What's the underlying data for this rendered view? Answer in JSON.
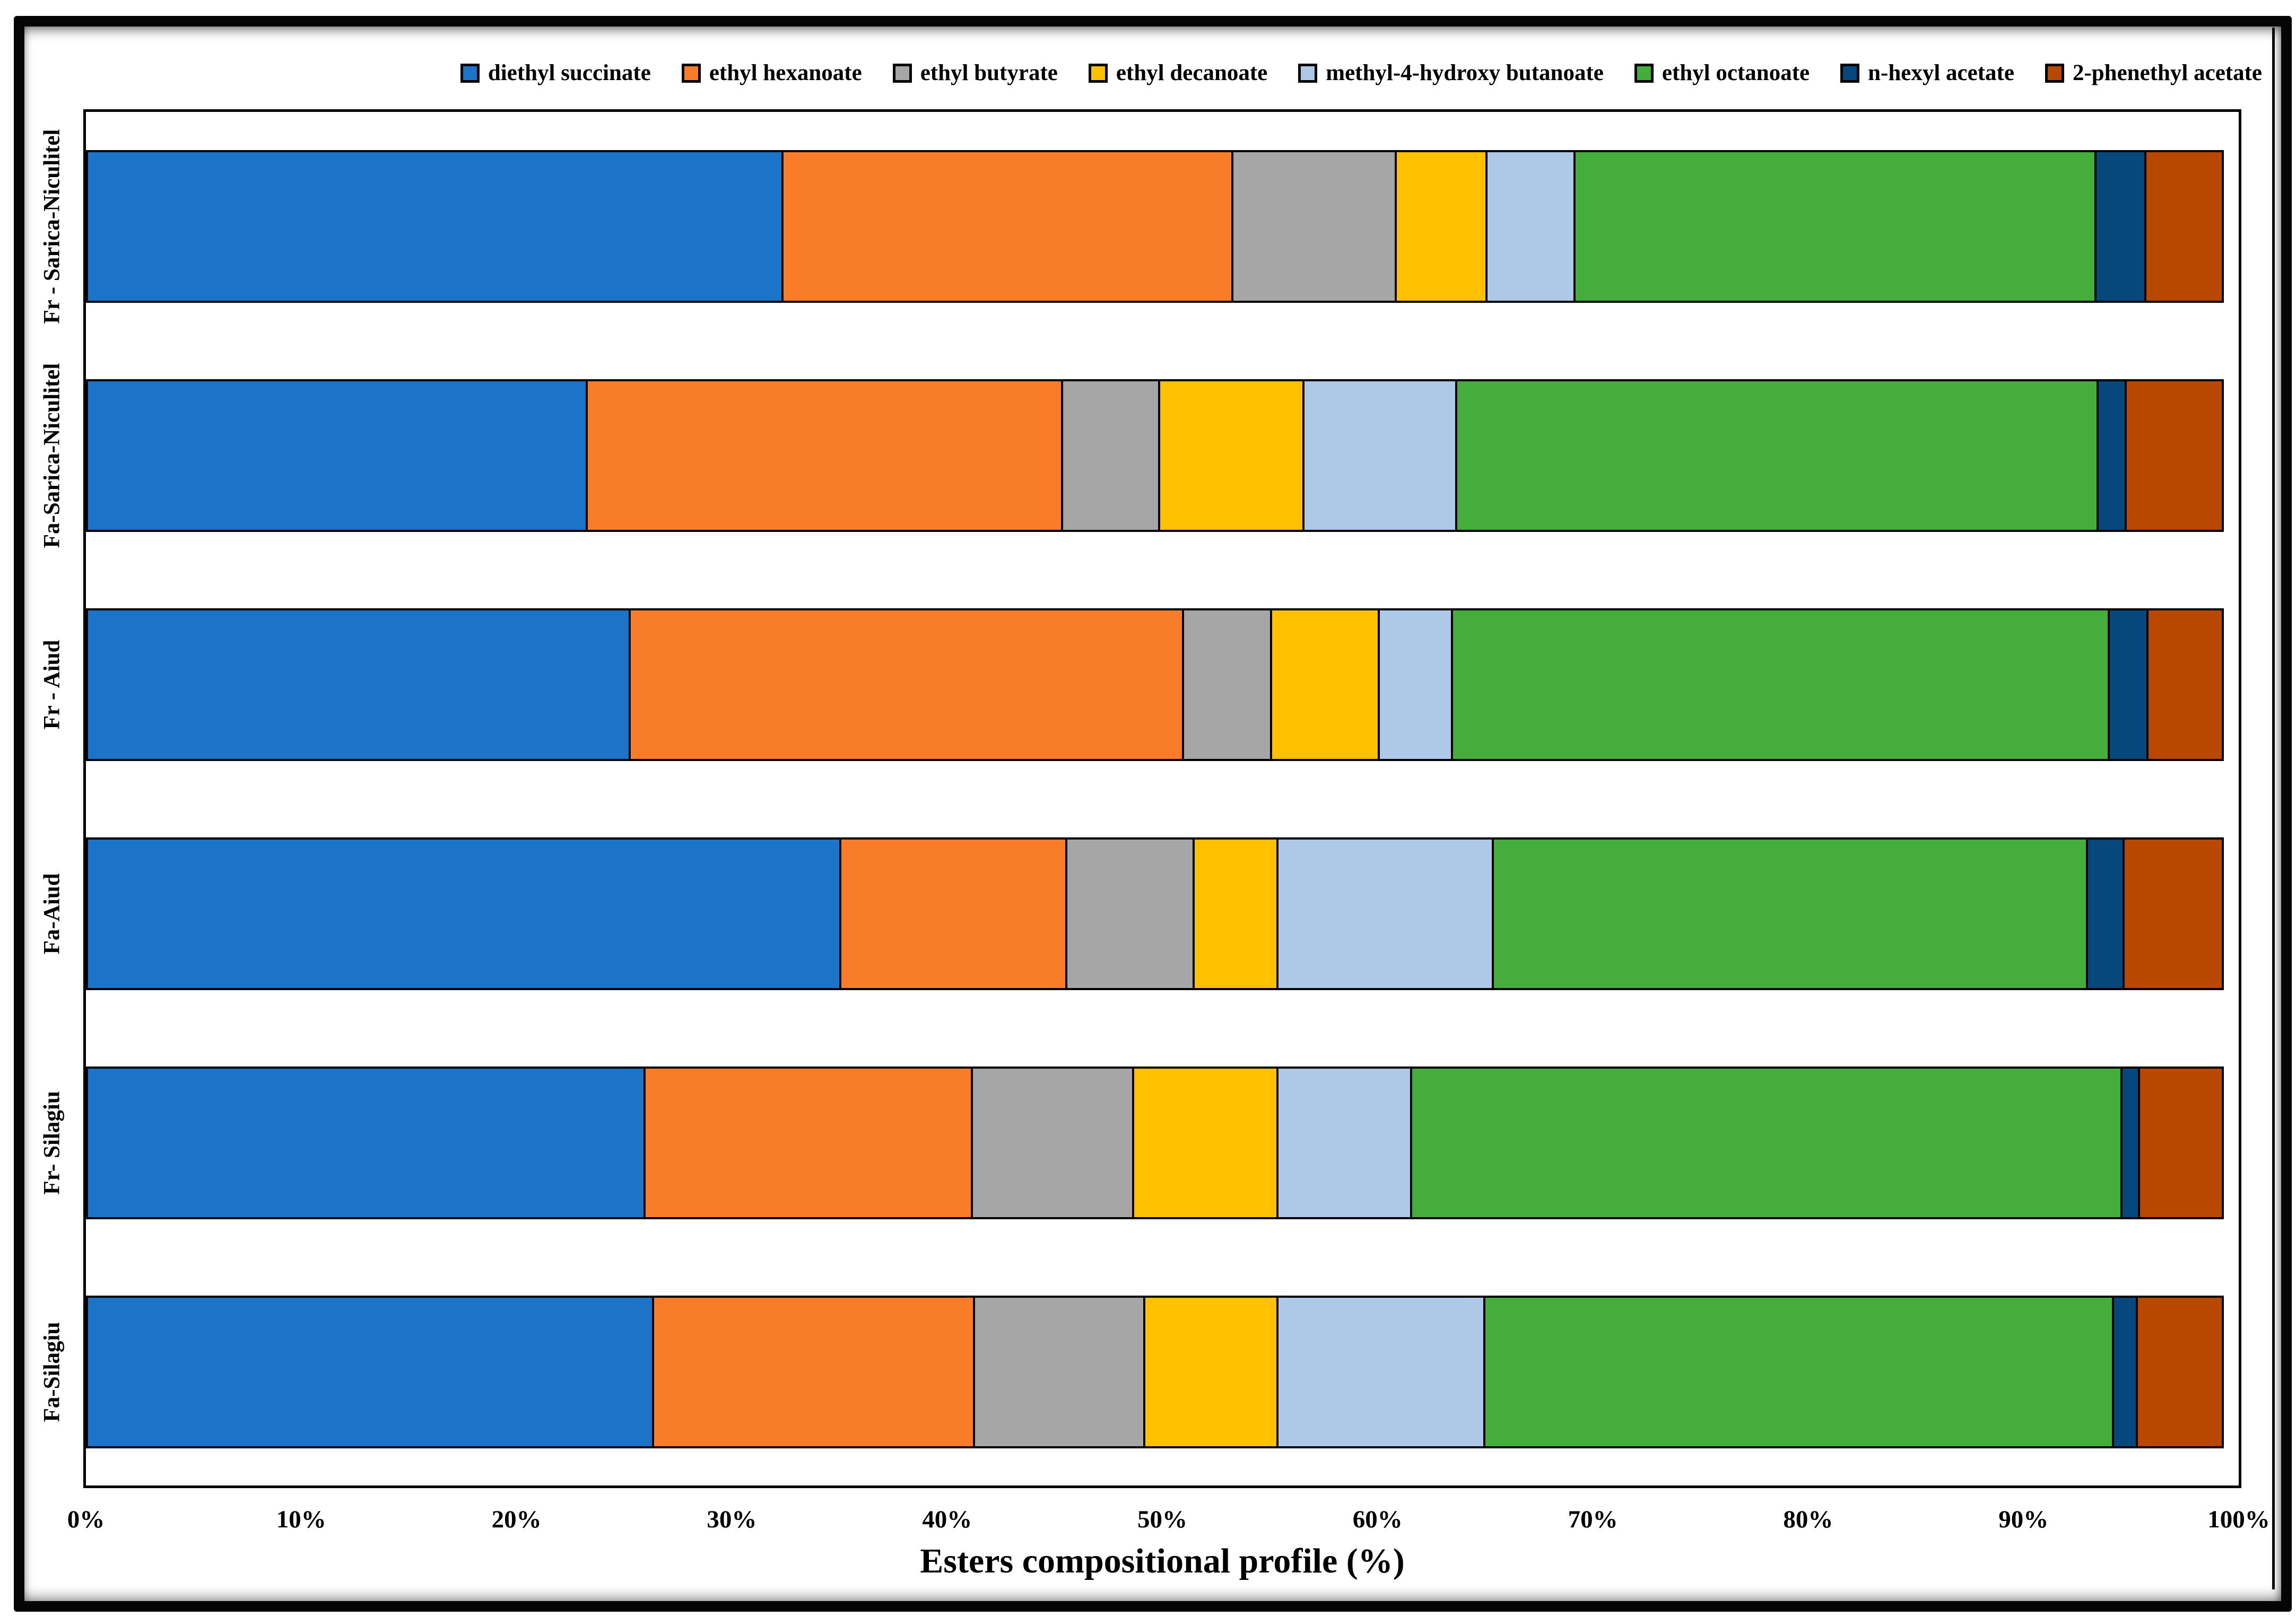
{
  "figure": {
    "xlabel": "Esters compositional profile (%)"
  },
  "chart_data": {
    "type": "bar",
    "orientation": "horizontal",
    "stacking": "100%-stacked",
    "title": "",
    "xlabel": "Esters compositional profile (%)",
    "ylabel": "",
    "xlim": [
      0,
      100
    ],
    "grid": false,
    "legend_position": "top",
    "x_ticks": [
      "0%",
      "10%",
      "20%",
      "30%",
      "40%",
      "50%",
      "60%",
      "70%",
      "80%",
      "90%",
      "100%"
    ],
    "categories": [
      "Fr - Sarica-Niculitel",
      "Fa-Sarica-Niculitel",
      "Fr - Aiud",
      "Fa-Aiud",
      "Fr- Silagiu",
      "Fa-Silagiu"
    ],
    "series": [
      {
        "name": "diethyl succinate",
        "color": "#1B74C8",
        "values": [
          32.4,
          23.3,
          25.3,
          35.1,
          26.0,
          26.4
        ]
      },
      {
        "name": "ethyl hexanoate",
        "color": "#F97D28",
        "values": [
          21.0,
          22.2,
          25.8,
          10.6,
          15.3,
          15.0
        ]
      },
      {
        "name": "ethyl butyrate",
        "color": "#A6A6A6",
        "values": [
          7.7,
          4.6,
          4.2,
          6.0,
          7.6,
          8.0
        ]
      },
      {
        "name": "ethyl decanoate",
        "color": "#FFC000",
        "values": [
          4.3,
          6.8,
          5.1,
          4.0,
          6.8,
          6.3
        ]
      },
      {
        "name": "methyl-4-hydroxy butanoate",
        "color": "#AEC8E8",
        "values": [
          4.2,
          7.2,
          3.5,
          10.1,
          6.3,
          9.7
        ]
      },
      {
        "name": "ethyl octanoate",
        "color": "#44AD3B",
        "values": [
          24.3,
          29.9,
          30.6,
          27.7,
          33.1,
          29.3
        ]
      },
      {
        "name": "n-hexyl acetate",
        "color": "#06477C",
        "values": [
          2.4,
          1.4,
          1.9,
          1.8,
          0.9,
          1.2
        ]
      },
      {
        "name": "2-phenethyl acetate",
        "color": "#B84700",
        "values": [
          3.7,
          4.6,
          3.6,
          4.7,
          4.0,
          4.1
        ]
      }
    ]
  }
}
